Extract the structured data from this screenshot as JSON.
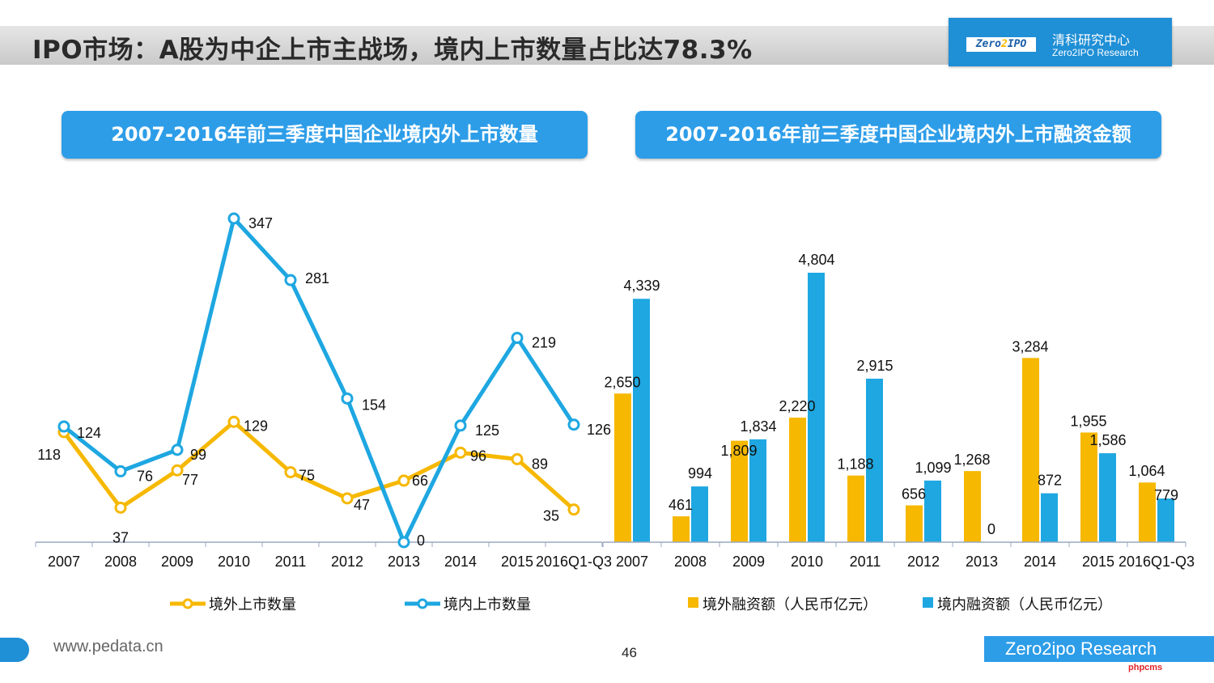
{
  "header": {
    "title": "IPO市场：A股为中企上市主战场，境内上市数量占比达78.3%",
    "logo_badge_left": "Zero",
    "logo_badge_mid": "2",
    "logo_badge_right": "IPO",
    "logo_cn": "清科研究中心",
    "logo_en": "Zero2IPO Research"
  },
  "panels": {
    "left_title": "2007-2016年前三季度中国企业境内外上市数量",
    "right_title": "2007-2016年前三季度中国企业境内外上市融资金额"
  },
  "footer": {
    "url": "www.pedata.cn",
    "page": "46",
    "brand": "Zero2ipo Research",
    "watermark": "phpcms"
  },
  "colors": {
    "overseas": "#f6b800",
    "domestic": "#1ea7e1",
    "axis": "#9aa8c0"
  },
  "chart_data": [
    {
      "type": "line",
      "categories": [
        "2007",
        "2008",
        "2009",
        "2010",
        "2011",
        "2012",
        "2013",
        "2014",
        "2015",
        "2016Q1-Q3"
      ],
      "series": [
        {
          "name": "境外上市数量",
          "values": [
            118,
            37,
            77,
            129,
            75,
            47,
            66,
            96,
            89,
            35
          ]
        },
        {
          "name": "境内上市数量",
          "values": [
            124,
            76,
            99,
            347,
            281,
            154,
            0,
            125,
            219,
            126
          ]
        }
      ],
      "ylim": [
        0,
        380
      ],
      "legend": "bottom",
      "grid": false
    },
    {
      "type": "bar",
      "categories": [
        "2007",
        "2008",
        "2009",
        "2010",
        "2011",
        "2012",
        "2013",
        "2014",
        "2015",
        "2016Q1-Q3"
      ],
      "series": [
        {
          "name": "境外融资额（人民币亿元）",
          "values": [
            2650,
            461,
            1809,
            2220,
            1188,
            656,
            1268,
            3284,
            1955,
            1064
          ]
        },
        {
          "name": "境内融资额（人民币亿元）",
          "values": [
            4339,
            994,
            1834,
            4804,
            2915,
            1099,
            0,
            872,
            1586,
            779
          ]
        }
      ],
      "ylim": [
        0,
        5200
      ],
      "legend": "bottom",
      "grid": false
    }
  ]
}
